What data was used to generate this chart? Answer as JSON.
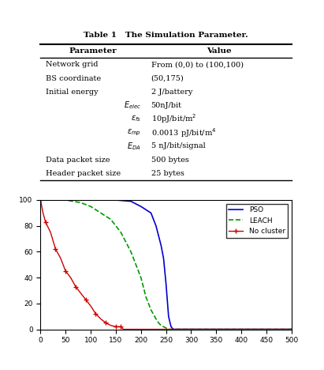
{
  "title": "Table 1   The Simulation Parameter.",
  "table_headers": [
    "Parameter",
    "Value"
  ],
  "table_rows": [
    [
      "Network grid",
      "From (0,0) to (100,100)"
    ],
    [
      "BS coordinate",
      "(50,175)"
    ],
    [
      "Initial energy",
      "2 J/battery"
    ],
    [
      "$E_{elec}$",
      "50nJ/bit"
    ],
    [
      "$\\varepsilon_{fs}$",
      "10pJ/bit/m$^2$"
    ],
    [
      "$\\varepsilon_{mp}$",
      "0.0013 pJ/bit/m$^4$"
    ],
    [
      "$E_{DA}$",
      "5 nJ/bit/signal"
    ],
    [
      "Data packet size",
      "500 bytes"
    ],
    [
      "Header packet size",
      "25 bytes"
    ]
  ],
  "italic_rows": [
    3,
    4,
    5,
    6
  ],
  "pso_x": [
    0,
    10,
    20,
    50,
    100,
    150,
    180,
    200,
    220,
    230,
    240,
    245,
    250,
    255,
    258,
    260,
    262,
    265,
    270,
    280,
    500
  ],
  "pso_y": [
    100,
    100,
    100,
    100,
    100,
    100,
    99,
    95,
    90,
    80,
    65,
    55,
    35,
    10,
    5,
    2,
    1,
    0,
    0,
    0,
    0
  ],
  "leach_x": [
    0,
    10,
    50,
    80,
    100,
    120,
    140,
    160,
    180,
    200,
    210,
    220,
    230,
    235,
    240,
    245,
    250,
    255,
    260,
    265,
    500
  ],
  "leach_y": [
    100,
    100,
    100,
    98,
    95,
    90,
    85,
    75,
    60,
    40,
    25,
    15,
    8,
    5,
    3,
    2,
    1,
    0,
    0,
    0,
    0
  ],
  "nocluster_x": [
    0,
    5,
    10,
    20,
    30,
    40,
    50,
    60,
    70,
    80,
    90,
    100,
    110,
    120,
    130,
    140,
    150,
    155,
    160,
    165,
    500
  ],
  "nocluster_y": [
    100,
    90,
    83,
    75,
    62,
    55,
    45,
    40,
    33,
    28,
    23,
    18,
    12,
    8,
    5,
    3,
    2,
    2,
    2,
    0,
    0
  ],
  "pso_color": "#0000cc",
  "leach_color": "#009900",
  "nocluster_color": "#cc0000",
  "xlim": [
    0,
    500
  ],
  "ylim": [
    0,
    100
  ],
  "xticks": [
    0,
    50,
    100,
    150,
    200,
    250,
    300,
    350,
    400,
    450,
    500
  ],
  "yticks": [
    0,
    20,
    40,
    60,
    80,
    100
  ]
}
